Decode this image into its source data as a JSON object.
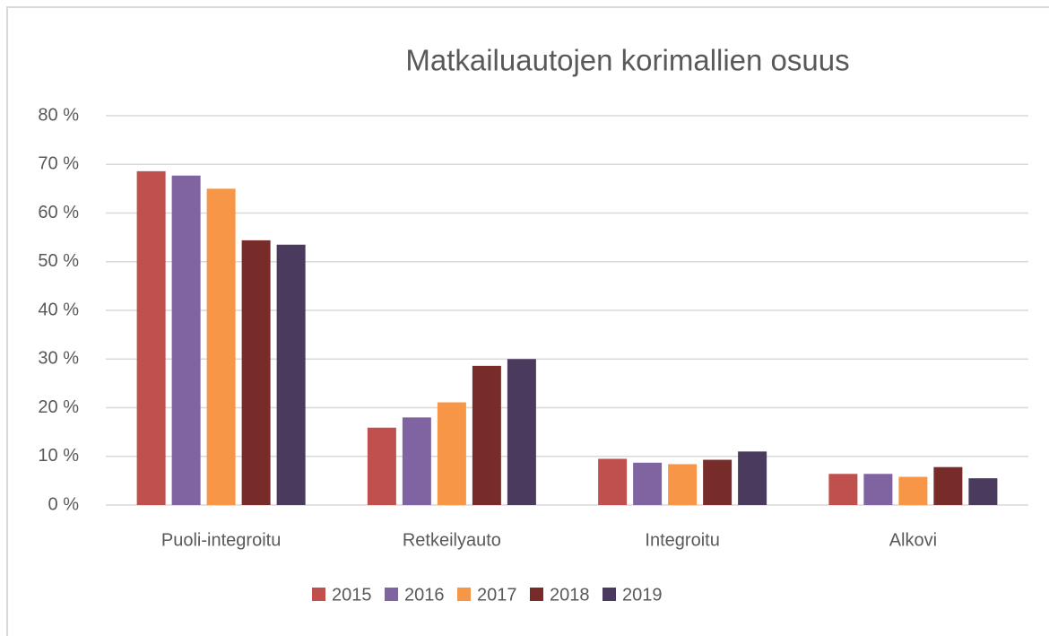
{
  "chart_data": {
    "type": "bar",
    "title": "Matkailuautojen korimallien osuus",
    "categories": [
      "Puoli-integroitu",
      "Retkeilyauto",
      "Integroitu",
      "Alkovi"
    ],
    "series": [
      {
        "name": "2015",
        "color": "#c0504d",
        "values": [
          68.6,
          15.9,
          9.5,
          6.4
        ]
      },
      {
        "name": "2016",
        "color": "#8064a2",
        "values": [
          67.7,
          18.0,
          8.7,
          6.4
        ]
      },
      {
        "name": "2017",
        "color": "#f79646",
        "values": [
          65.0,
          21.1,
          8.4,
          5.8
        ]
      },
      {
        "name": "2018",
        "color": "#772c2a",
        "values": [
          54.4,
          28.6,
          9.3,
          7.8
        ]
      },
      {
        "name": "2019",
        "color": "#4a3a5e",
        "values": [
          53.5,
          30.0,
          11.0,
          5.5
        ]
      }
    ],
    "ylim": [
      0,
      80
    ],
    "yticks": [
      {
        "value": 0,
        "label": "0 %"
      },
      {
        "value": 10,
        "label": "10 %"
      },
      {
        "value": 20,
        "label": "20 %"
      },
      {
        "value": 30,
        "label": "30 %"
      },
      {
        "value": 40,
        "label": "40 %"
      },
      {
        "value": 50,
        "label": "50 %"
      },
      {
        "value": 60,
        "label": "60 %"
      },
      {
        "value": 70,
        "label": "70 %"
      },
      {
        "value": 80,
        "label": "80 %"
      }
    ],
    "grid": true,
    "legend": "bottom"
  }
}
